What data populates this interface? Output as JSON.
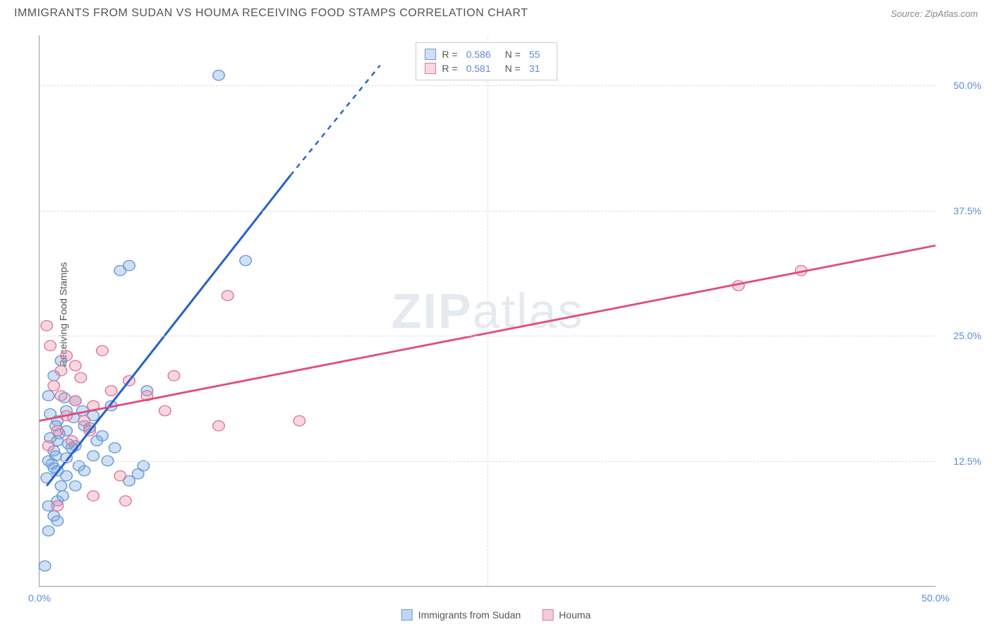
{
  "title": "IMMIGRANTS FROM SUDAN VS HOUMA RECEIVING FOOD STAMPS CORRELATION CHART",
  "source": "Source: ZipAtlas.com",
  "watermark_zip": "ZIP",
  "watermark_atlas": "atlas",
  "yaxis_label": "Receiving Food Stamps",
  "chart": {
    "type": "scatter-with-regression",
    "xlim": [
      0,
      50
    ],
    "ylim": [
      0,
      55
    ],
    "y_ticks": [
      12.5,
      25.0,
      37.5,
      50.0
    ],
    "y_tick_labels": [
      "12.5%",
      "25.0%",
      "37.5%",
      "50.0%"
    ],
    "x_ticks": [
      0,
      25,
      50
    ],
    "x_tick_labels": [
      "0.0%",
      "",
      "50.0%"
    ],
    "grid_color": "#dddddd",
    "axis_color": "#999999",
    "background_color": "#ffffff",
    "series": [
      {
        "name": "Immigrants from Sudan",
        "fill_color": "rgba(120, 165, 220, 0.35)",
        "stroke_color": "#6a9bd8",
        "line_color": "#2962c9",
        "r_value": "0.586",
        "n_value": "55",
        "points": [
          [
            0.3,
            2.0
          ],
          [
            0.5,
            5.5
          ],
          [
            0.8,
            7.0
          ],
          [
            1.0,
            8.5
          ],
          [
            1.2,
            10.0
          ],
          [
            1.5,
            11.0
          ],
          [
            0.5,
            12.5
          ],
          [
            0.8,
            13.5
          ],
          [
            1.0,
            14.5
          ],
          [
            1.5,
            15.5
          ],
          [
            2.0,
            10.0
          ],
          [
            2.5,
            11.5
          ],
          [
            3.0,
            13.0
          ],
          [
            2.0,
            14.0
          ],
          [
            3.5,
            15.0
          ],
          [
            1.0,
            16.5
          ],
          [
            1.5,
            17.5
          ],
          [
            2.0,
            18.5
          ],
          [
            0.5,
            19.0
          ],
          [
            0.8,
            21.0
          ],
          [
            1.2,
            22.5
          ],
          [
            2.5,
            16.0
          ],
          [
            3.0,
            17.0
          ],
          [
            4.0,
            18.0
          ],
          [
            1.0,
            11.5
          ],
          [
            1.5,
            12.8
          ],
          [
            0.6,
            14.8
          ],
          [
            0.9,
            16.0
          ],
          [
            2.2,
            12.0
          ],
          [
            3.2,
            14.5
          ],
          [
            5.0,
            10.5
          ],
          [
            5.5,
            11.2
          ],
          [
            5.8,
            12.0
          ],
          [
            6.0,
            19.5
          ],
          [
            4.5,
            31.5
          ],
          [
            5.0,
            32.0
          ],
          [
            11.5,
            32.5
          ],
          [
            10.0,
            51.0
          ],
          [
            1.0,
            6.5
          ],
          [
            1.3,
            9.0
          ],
          [
            0.4,
            10.8
          ],
          [
            0.7,
            12.2
          ],
          [
            1.8,
            13.8
          ],
          [
            2.8,
            15.8
          ],
          [
            0.6,
            17.2
          ],
          [
            1.4,
            18.8
          ],
          [
            0.9,
            13.0
          ],
          [
            1.6,
            14.2
          ],
          [
            2.4,
            17.5
          ],
          [
            0.5,
            8.0
          ],
          [
            1.1,
            15.2
          ],
          [
            1.9,
            16.8
          ],
          [
            0.8,
            11.8
          ],
          [
            3.8,
            12.5
          ],
          [
            4.2,
            13.8
          ]
        ],
        "trend": {
          "x1": 0.4,
          "y1": 10.0,
          "x2": 14.0,
          "y2": 41.0,
          "dash_x2": 19.0,
          "dash_y2": 52.0
        }
      },
      {
        "name": "Houma",
        "fill_color": "rgba(235, 140, 170, 0.35)",
        "stroke_color": "#e07a9a",
        "line_color": "#e24b7a",
        "r_value": "0.581",
        "n_value": "31",
        "points": [
          [
            0.5,
            14.0
          ],
          [
            1.0,
            15.5
          ],
          [
            1.5,
            17.0
          ],
          [
            2.0,
            18.5
          ],
          [
            0.8,
            20.0
          ],
          [
            1.2,
            21.5
          ],
          [
            2.5,
            16.5
          ],
          [
            3.0,
            18.0
          ],
          [
            0.6,
            24.0
          ],
          [
            0.4,
            26.0
          ],
          [
            4.0,
            19.5
          ],
          [
            5.0,
            20.5
          ],
          [
            2.0,
            22.0
          ],
          [
            3.5,
            23.5
          ],
          [
            6.0,
            19.0
          ],
          [
            1.8,
            14.5
          ],
          [
            2.8,
            15.5
          ],
          [
            1.0,
            8.0
          ],
          [
            3.0,
            9.0
          ],
          [
            4.8,
            8.5
          ],
          [
            4.5,
            11.0
          ],
          [
            1.5,
            23.0
          ],
          [
            7.0,
            17.5
          ],
          [
            7.5,
            21.0
          ],
          [
            10.0,
            16.0
          ],
          [
            10.5,
            29.0
          ],
          [
            14.5,
            16.5
          ],
          [
            39.0,
            30.0
          ],
          [
            42.5,
            31.5
          ],
          [
            1.2,
            19.0
          ],
          [
            2.3,
            20.8
          ]
        ],
        "trend": {
          "x1": 0,
          "y1": 16.5,
          "x2": 50,
          "y2": 34.0
        }
      }
    ]
  },
  "legend_bottom": [
    {
      "label": "Immigrants from Sudan",
      "fill": "rgba(120, 165, 220, 0.45)",
      "stroke": "#6a9bd8"
    },
    {
      "label": "Houma",
      "fill": "rgba(235, 140, 170, 0.45)",
      "stroke": "#e07a9a"
    }
  ],
  "marker_radius": 6.5,
  "line_width": 2.5
}
